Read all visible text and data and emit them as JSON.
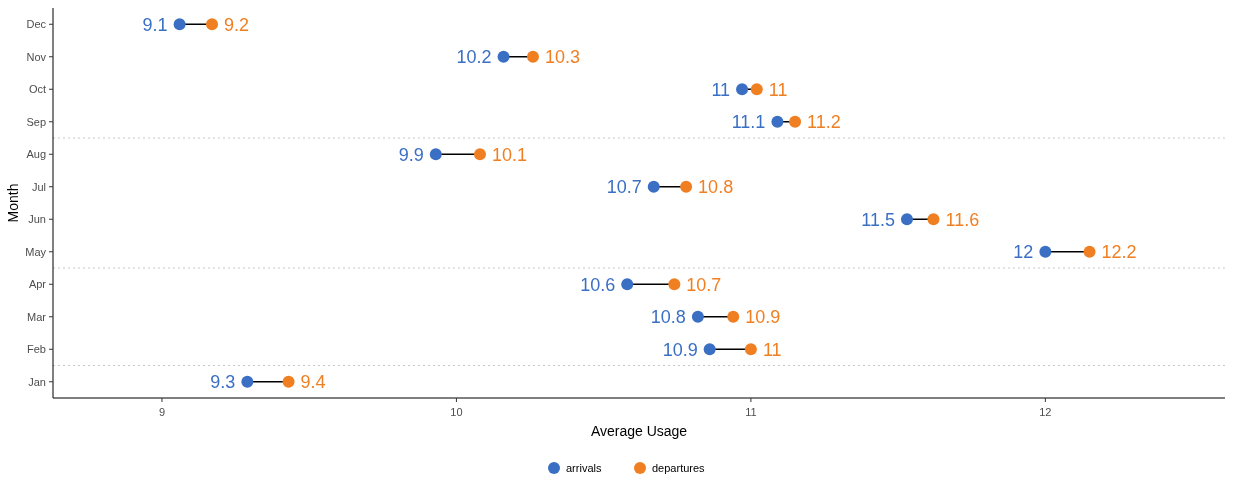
{
  "chart_data": {
    "type": "scatter",
    "orientation": "horizontal",
    "xlabel": "Average Usage",
    "ylabel": "Month",
    "categories": [
      "Dec",
      "Nov",
      "Oct",
      "Sep",
      "Aug",
      "Jul",
      "Jun",
      "May",
      "Apr",
      "Mar",
      "Feb",
      "Jan"
    ],
    "series": [
      {
        "name": "arrivals",
        "color": "#3a6fc4",
        "values": [
          9.06,
          10.16,
          10.97,
          11.09,
          9.93,
          10.67,
          11.53,
          12.0,
          10.58,
          10.82,
          10.86,
          9.29
        ],
        "value_labels": [
          "9.1",
          "10.2",
          "11",
          "11.1",
          "9.9",
          "10.7",
          "11.5",
          "12",
          "10.6",
          "10.8",
          "10.9",
          "9.3"
        ]
      },
      {
        "name": "departures",
        "color": "#f07f22",
        "values": [
          9.17,
          10.26,
          11.02,
          11.15,
          10.08,
          10.78,
          11.62,
          12.15,
          10.74,
          10.94,
          11.0,
          9.43
        ],
        "value_labels": [
          "9.2",
          "10.3",
          "11",
          "11.2",
          "10.1",
          "10.8",
          "11.6",
          "12.2",
          "10.7",
          "10.9",
          "11",
          "9.4"
        ]
      }
    ],
    "xlim": [
      8.63,
      12.61
    ],
    "xticks": [
      9,
      10,
      11,
      12
    ],
    "grid": false,
    "legend": "bottom",
    "marker": "circle"
  }
}
